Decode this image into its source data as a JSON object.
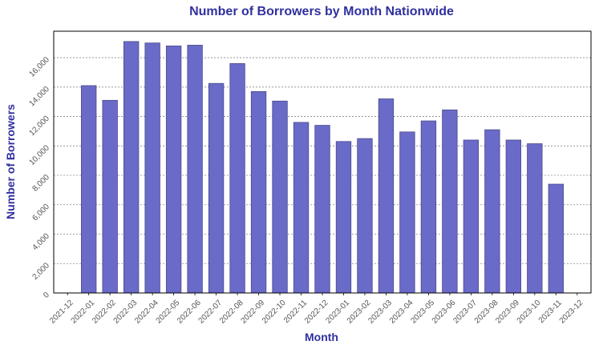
{
  "chart_data": {
    "type": "bar",
    "title": "Number of Borrowers by Month Nationwide",
    "xlabel": "Month",
    "ylabel": "Number of Borrowers",
    "x_ticks": [
      "2021-12",
      "2022-01",
      "2022-02",
      "2022-03",
      "2022-04",
      "2022-05",
      "2022-06",
      "2022-07",
      "2022-08",
      "2022-09",
      "2022-10",
      "2022-11",
      "2022-12",
      "2023-01",
      "2023-02",
      "2023-03",
      "2023-04",
      "2023-05",
      "2023-06",
      "2023-07",
      "2023-08",
      "2023-09",
      "2023-10",
      "2023-11",
      "2023-12"
    ],
    "categories": [
      "2022-01",
      "2022-02",
      "2022-03",
      "2022-04",
      "2022-05",
      "2022-06",
      "2022-07",
      "2022-08",
      "2022-09",
      "2022-10",
      "2022-11",
      "2022-12",
      "2023-01",
      "2023-02",
      "2023-03",
      "2023-04",
      "2023-05",
      "2023-06",
      "2023-07",
      "2023-08",
      "2023-09",
      "2023-10",
      "2023-11"
    ],
    "values": [
      14100,
      13100,
      17100,
      17000,
      16800,
      16850,
      14250,
      15600,
      13700,
      13050,
      11600,
      11400,
      10300,
      10500,
      13200,
      10950,
      11700,
      12450,
      10400,
      11100,
      10400,
      10150,
      7400
    ],
    "ylim": [
      0,
      17800
    ],
    "y_ticks": [
      0,
      2000,
      4000,
      6000,
      8000,
      10000,
      12000,
      14000,
      16000
    ],
    "y_tick_labels": [
      "0",
      "2,000",
      "4,000",
      "6,000",
      "8,000",
      "10,000",
      "12,000",
      "14,000",
      "16,000"
    ],
    "grid": "horizontal dashed",
    "colors": {
      "bar": "#6a6ac8",
      "bar_edge": "#4a4a8c",
      "title": "#3030a0",
      "grid": "#888888",
      "tick_text": "#555555"
    }
  }
}
